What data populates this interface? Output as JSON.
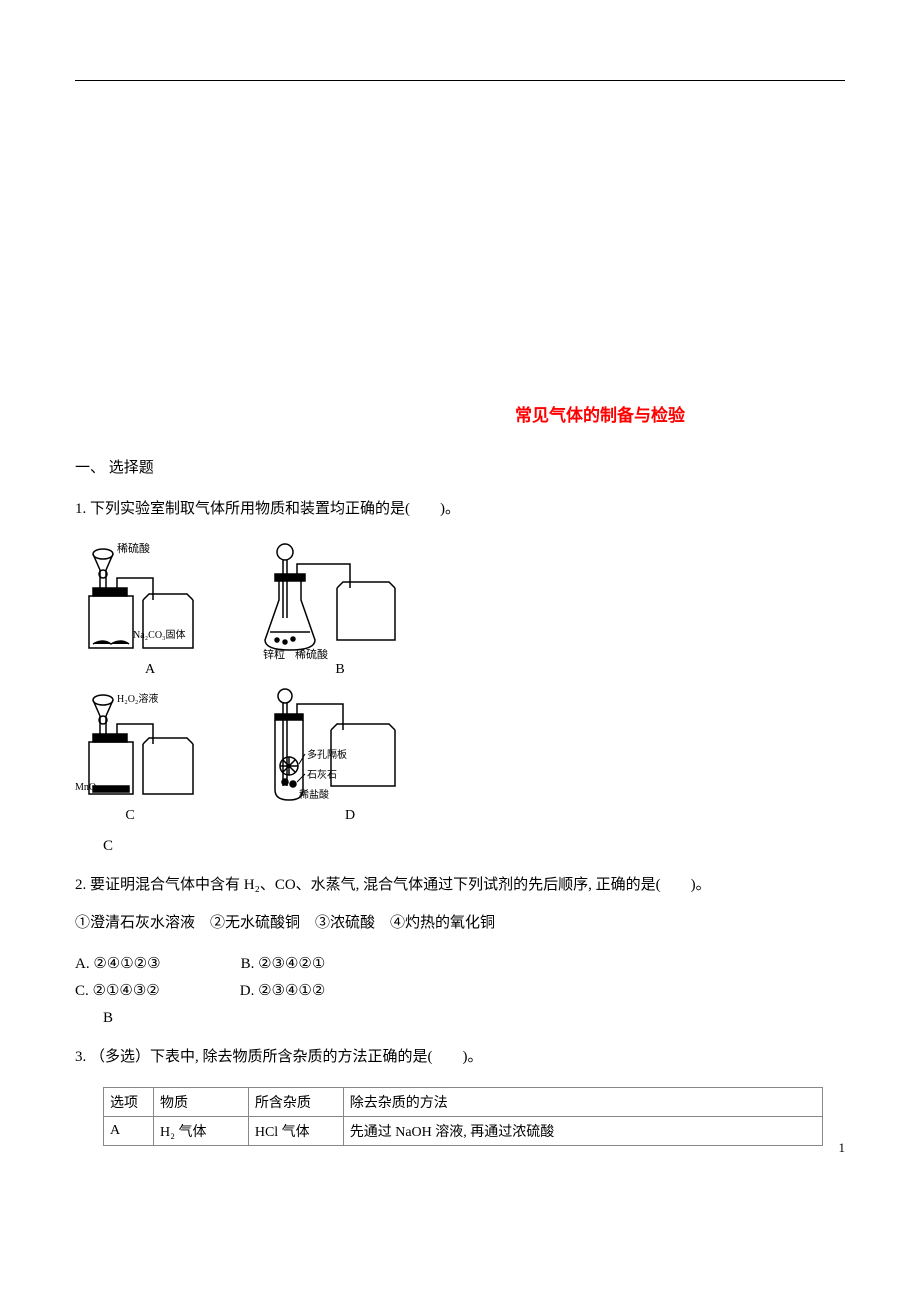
{
  "title": {
    "text": "常见气体的制备与检验",
    "color": "#ff0000",
    "fontsize": 17
  },
  "section1": "一、 选择题",
  "q1": {
    "stem": "1. 下列实验室制取气体所用物质和装置均正确的是(　　)。",
    "answer": "C",
    "diagrams": {
      "A": {
        "label": "A",
        "reagent_top": "稀硫酸",
        "reagent_in": "Na₂CO₃固体"
      },
      "B": {
        "label": "B",
        "reagent_left": "锌粒",
        "reagent_right": "稀硫酸"
      },
      "C": {
        "label": "C",
        "reagent_top": "H₂O₂溶液",
        "reagent_in": "MnO₂"
      },
      "D": {
        "label": "D",
        "part1": "多孔隔板",
        "part2": "石灰石",
        "part3": "稀盐酸"
      }
    }
  },
  "q2": {
    "stem": "2. 要证明混合气体中含有 H₂、CO、水蒸气, 混合气体通过下列试剂的先后顺序, 正确的是(　　)。",
    "reagents": "①澄清石灰水溶液　②无水硫酸铜　③浓硫酸　④灼热的氧化铜",
    "opts": {
      "A": "A. ②④①②③",
      "B": "B. ②③④②①",
      "C": "C. ②①④③②",
      "D": "D. ②③④①②"
    },
    "answer": "B"
  },
  "q3": {
    "stem": "3. （多选）下表中, 除去物质所含杂质的方法正确的是(　　)。",
    "table": {
      "headers": [
        "选项",
        "物质",
        "所含杂质",
        "除去杂质的方法"
      ],
      "rows": [
        [
          "A",
          "H₂ 气体",
          "HCl 气体",
          "先通过 NaOH 溶液, 再通过浓硫酸"
        ]
      ],
      "col_widths": [
        "50px",
        "95px",
        "95px",
        "480px"
      ]
    }
  },
  "page_number": "1",
  "colors": {
    "text": "#000000",
    "rule": "#000000",
    "diagram_stroke": "#000000",
    "table_border": "#888888"
  },
  "fontsize": {
    "body": 15,
    "small": 13,
    "diagram_label": 11
  }
}
